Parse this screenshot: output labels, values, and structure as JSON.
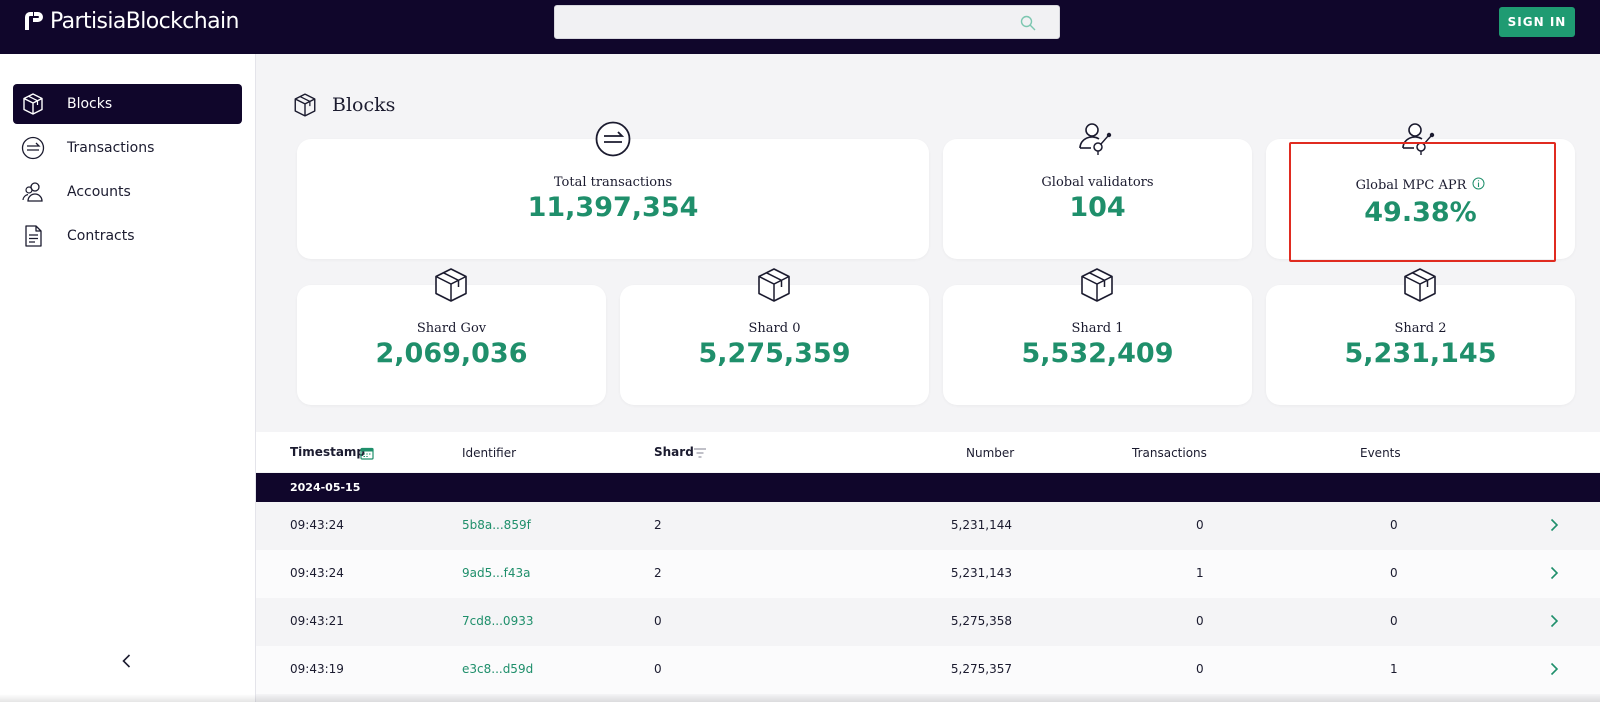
{
  "header": {
    "logo_text": "PartisiaBlockchain",
    "search_placeholder": "",
    "signin_label": "SIGN IN",
    "colors": {
      "bg": "#10062b",
      "accent": "#1f9b72"
    }
  },
  "sidebar": {
    "items": [
      {
        "label": "Blocks",
        "icon": "cube-icon",
        "active": true
      },
      {
        "label": "Transactions",
        "icon": "transfer-icon",
        "active": false
      },
      {
        "label": "Accounts",
        "icon": "users-icon",
        "active": false
      },
      {
        "label": "Contracts",
        "icon": "document-icon",
        "active": false
      }
    ],
    "collapse_icon": "chevron-left-icon"
  },
  "page": {
    "title": "Blocks"
  },
  "stats": {
    "total_transactions": {
      "label": "Total transactions",
      "value": "11,397,354"
    },
    "global_validators": {
      "label": "Global validators",
      "value": "104"
    },
    "global_mpc_apr": {
      "label": "Global MPC APR",
      "value": "49.38%"
    },
    "shards": [
      {
        "label": "Shard Gov",
        "value": "2,069,036"
      },
      {
        "label": "Shard 0",
        "value": "5,275,359"
      },
      {
        "label": "Shard 1",
        "value": "5,532,409"
      },
      {
        "label": "Shard 2",
        "value": "5,231,145"
      }
    ]
  },
  "table": {
    "headers": {
      "timestamp": "Timestamp",
      "identifier": "Identifier",
      "shard": "Shard",
      "number": "Number",
      "transactions": "Transactions",
      "events": "Events"
    },
    "date_group": "2024-05-15",
    "rows": [
      {
        "time": "09:43:24",
        "id": "5b8a...859f",
        "shard": "2",
        "number": "5,231,144",
        "transactions": "0",
        "events": "0"
      },
      {
        "time": "09:43:24",
        "id": "9ad5...f43a",
        "shard": "2",
        "number": "5,231,143",
        "transactions": "1",
        "events": "0"
      },
      {
        "time": "09:43:21",
        "id": "7cd8...0933",
        "shard": "0",
        "number": "5,275,358",
        "transactions": "0",
        "events": "0"
      },
      {
        "time": "09:43:19",
        "id": "e3c8...d59d",
        "shard": "0",
        "number": "5,275,357",
        "transactions": "0",
        "events": "1"
      }
    ]
  }
}
